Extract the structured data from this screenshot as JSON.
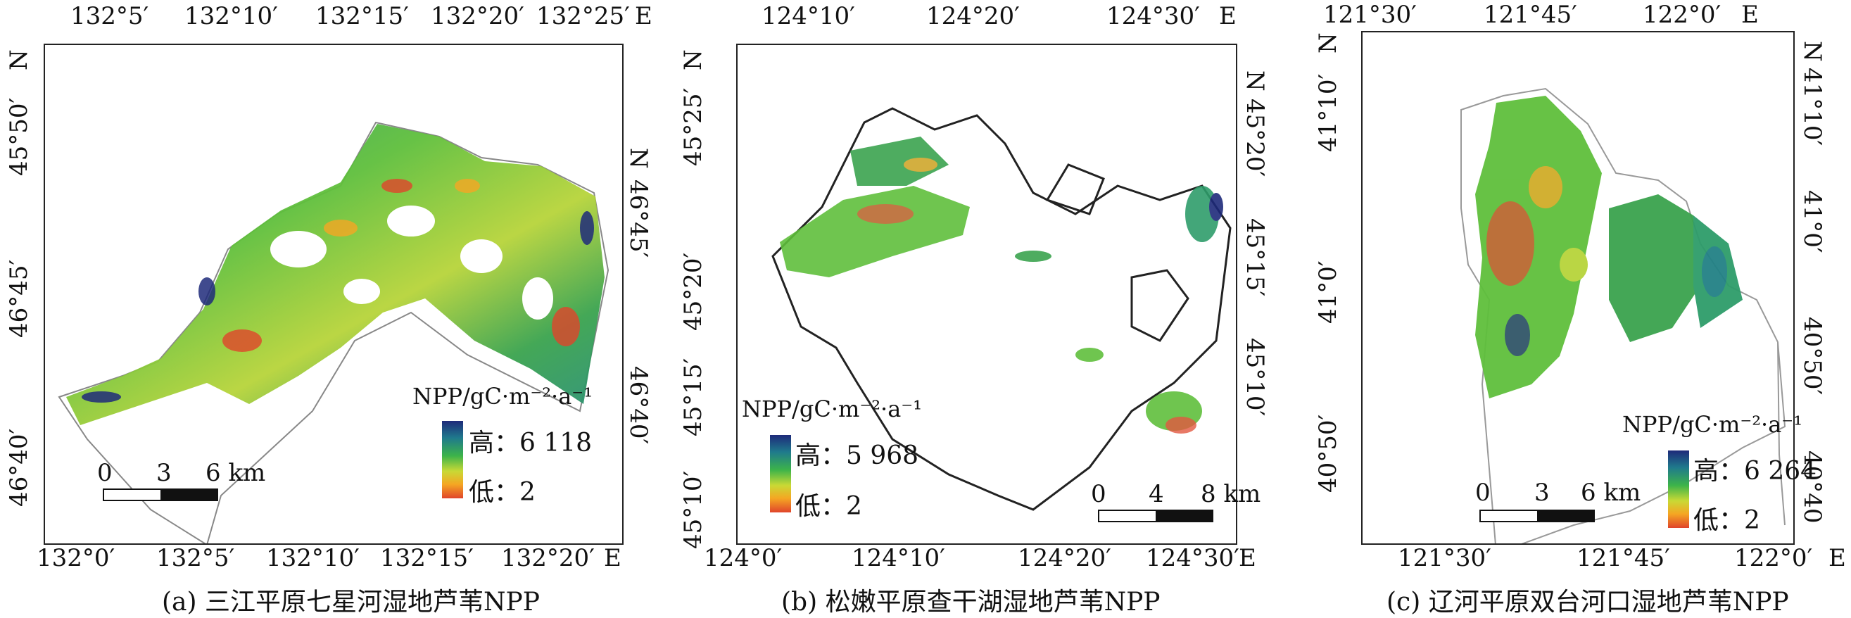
{
  "panels": [
    {
      "caption": "(a) 三江平原七星河湿地芦苇NPP",
      "top_ticks": [
        "132°5′",
        "132°10′",
        "132°15′",
        "132°20′",
        "132°25′",
        "E"
      ],
      "bottom_ticks": [
        "132°0′",
        "132°5′",
        "132°10′",
        "132°15′",
        "132°20′",
        "E"
      ],
      "left_ticks": [
        "N",
        "45°50′",
        "46°45′",
        "46°40′"
      ],
      "right_ticks": [
        "N",
        "46°45′",
        "46°40′"
      ],
      "legend": {
        "title": "NPP/gC·m⁻²·a⁻¹",
        "high": "高：6 118",
        "low": "低：2"
      },
      "scale": [
        "0",
        "3",
        "6 km"
      ]
    },
    {
      "caption": "(b) 松嫩平原查干湖湿地芦苇NPP",
      "top_ticks": [
        "124°10′",
        "124°20′",
        "124°30′",
        "E"
      ],
      "bottom_ticks": [
        "124°0′",
        "124°10′",
        "124°20′",
        "124°30′",
        "E"
      ],
      "left_ticks": [
        "N",
        "45°25′",
        "45°20′",
        "45°15′",
        "45°10′"
      ],
      "right_ticks": [
        "N",
        "45°20′",
        "45°15′",
        "45°10′"
      ],
      "legend": {
        "title": "NPP/gC·m⁻²·a⁻¹",
        "high": "高：5 968",
        "low": "低：2"
      },
      "scale": [
        "0",
        "4",
        "8 km"
      ]
    },
    {
      "caption": "(c) 辽河平原双台河口湿地芦苇NPP",
      "top_ticks": [
        "121°30′",
        "121°45′",
        "122°0′",
        "E"
      ],
      "bottom_ticks": [
        "121°30′",
        "121°45′",
        "122°0′",
        "E"
      ],
      "left_ticks": [
        "N",
        "41°10′",
        "41°0′",
        "40°50′"
      ],
      "right_ticks": [
        "N",
        "41°10′",
        "41°0′",
        "40°50′",
        "40°40"
      ],
      "legend": {
        "title": "NPP/gC·m⁻²·a⁻¹",
        "high": "高：6 264",
        "low": "低：2"
      },
      "scale": [
        "0",
        "3",
        "6 km"
      ]
    }
  ],
  "colors": {
    "high": "#1e2a7a",
    "mid": "#3cb34a",
    "low": "#e0452b"
  }
}
